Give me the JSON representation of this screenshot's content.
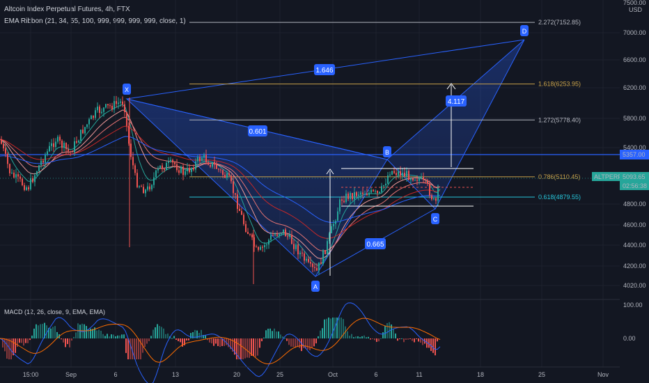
{
  "header": {
    "title": "Altcoin Index Perpetual Futures, 4h, FTX",
    "indicator": "EMA Ribbon (21, 34, 55, 100, 999, 999, 999, 999, close, 1)",
    "macd": "MACD (12, 26, close, 9, EMA, EMA)",
    "currency": "USD"
  },
  "colors": {
    "background": "#131722",
    "up": "#26a69a",
    "down": "#ef5350",
    "pattern": "#2962ff",
    "fib_gold": "#c9a24a",
    "fib_cyan": "#26c6da"
  },
  "price_badges": [
    {
      "ticker": "ALTPERP",
      "price": "5093.65",
      "countdown": "02:56:38",
      "color": "#26a69a"
    },
    {
      "price": "5357.00",
      "color": "#2962ff"
    }
  ],
  "chart_data": {
    "type": "candlestick",
    "title": "Altcoin Index Perpetual Futures, 4h, FTX",
    "y_ticks": [
      "7000.00",
      "6600.00",
      "6200.00",
      "5800.00",
      "5400.00",
      "4800.00",
      "4600.00",
      "4400.00",
      "4200.00",
      "4020.00"
    ],
    "y_ticks_faded": [
      "7500.00",
      "5400.00"
    ],
    "x_ticks": [
      "15:00",
      "Sep",
      "6",
      "13",
      "20",
      "25",
      "Oct",
      "6",
      "11",
      "18",
      "25",
      "Nov"
    ],
    "macd_ticks": [
      "100.00",
      "0.00",
      "-100.00"
    ],
    "harmonic_points": [
      {
        "label": "X",
        "price": 6100
      },
      {
        "label": "A",
        "price": 4130
      },
      {
        "label": "B",
        "price": 5170
      },
      {
        "label": "C",
        "price": 4800
      },
      {
        "label": "D",
        "price": 6890
      }
    ],
    "ratios": [
      "0.601",
      "1.646",
      "0.665",
      "4.117"
    ],
    "fib_levels": [
      {
        "label": "2.272(7152.85)",
        "price": 7152.85
      },
      {
        "label": "1.618(6253.95)",
        "price": 6253.95
      },
      {
        "label": "1.272(5778.40)",
        "price": 5778.4
      },
      {
        "label": "0.786(5110.45)",
        "price": 5110.45
      },
      {
        "label": "0.618(4879.55)",
        "price": 4879.55
      }
    ],
    "horizontal_line": 5357.0,
    "current_price": 5093.65
  }
}
